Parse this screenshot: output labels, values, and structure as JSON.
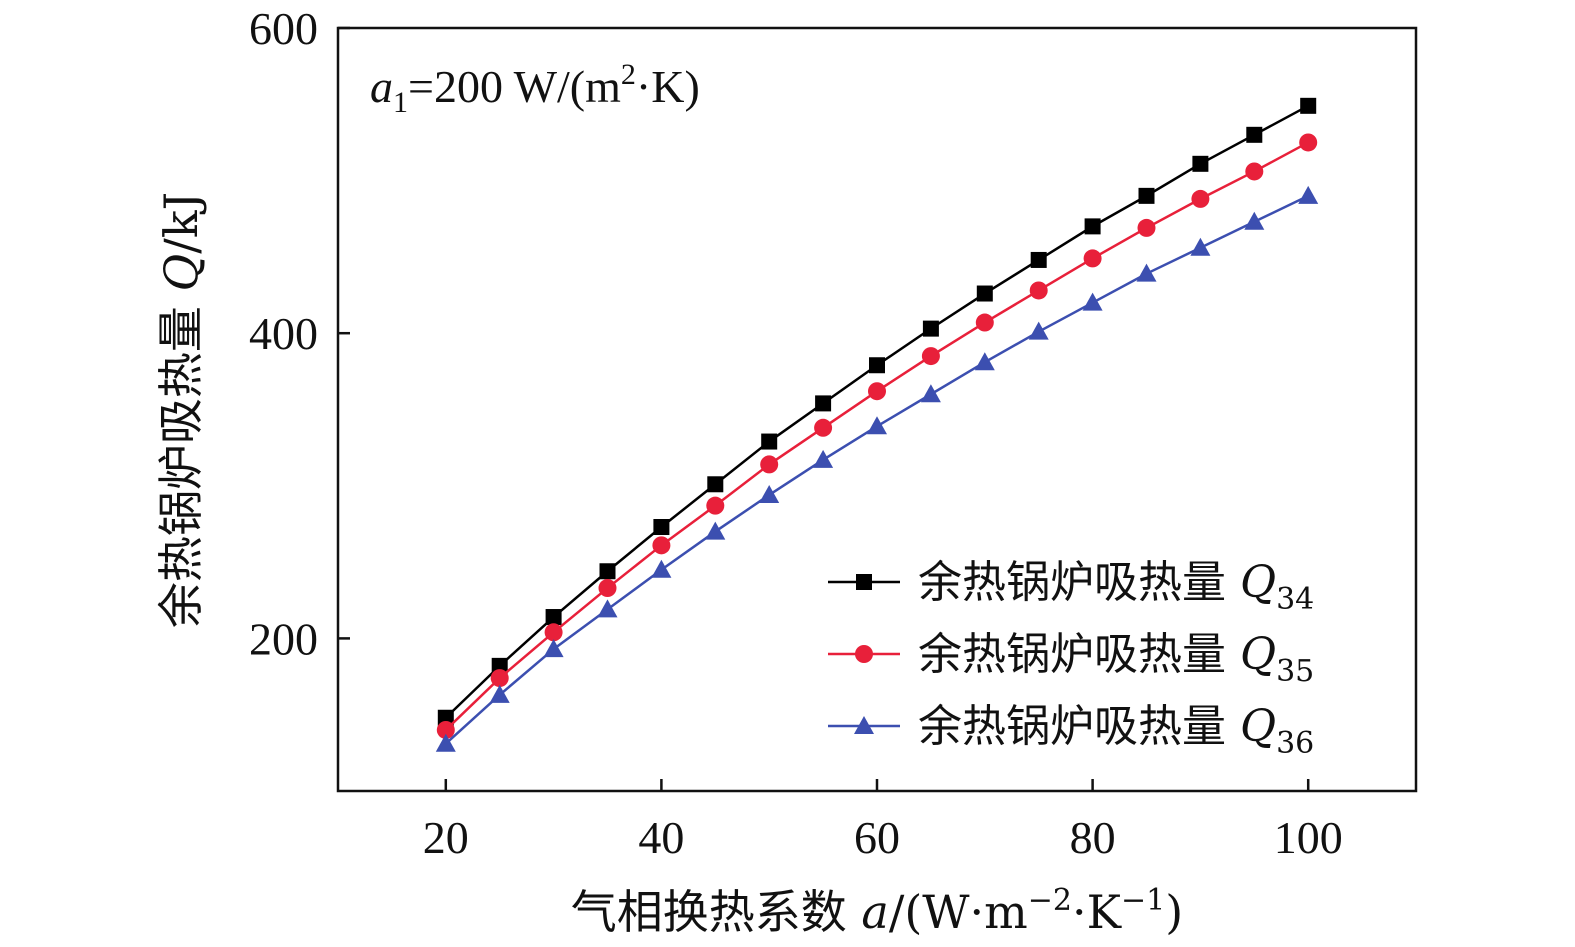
{
  "chart_data": {
    "type": "line",
    "annotation": {
      "symbol": "a",
      "subscript": "1",
      "text": "=200 W/(m",
      "sup": "2",
      "tail": "·K)"
    },
    "xlabel": {
      "text": "气相换热系数 ",
      "var": "a",
      "unit": "/(W·m",
      "sup1": "−2",
      "mid": "·K",
      "sup2": "−1",
      "tail": ")"
    },
    "ylabel": {
      "text": "余热锅炉吸热量 ",
      "var": "Q",
      "unit": "/kJ"
    },
    "xlim": [
      10,
      110
    ],
    "ylim": [
      100,
      600
    ],
    "x_ticks": [
      20,
      40,
      60,
      80,
      100
    ],
    "y_ticks": [
      200,
      400,
      600
    ],
    "grid": false,
    "legend_position": "bottom-right",
    "x": [
      20,
      25,
      30,
      35,
      40,
      45,
      50,
      55,
      60,
      65,
      70,
      75,
      80,
      85,
      90,
      95,
      100
    ],
    "series": [
      {
        "name": "余热锅炉吸热量 ",
        "var": "Q",
        "subscript": "34",
        "color": "#000000",
        "marker": "square",
        "values": [
          148,
          182,
          214,
          244,
          273,
          301,
          329,
          354,
          379,
          403,
          426,
          448,
          470,
          490,
          511,
          530,
          549
        ]
      },
      {
        "name": "余热锅炉吸热量 ",
        "var": "Q",
        "subscript": "35",
        "color": "#e8203a",
        "marker": "circle",
        "values": [
          140,
          174,
          204,
          233,
          261,
          287,
          314,
          338,
          362,
          385,
          407,
          428,
          449,
          469,
          488,
          506,
          525
        ]
      },
      {
        "name": "余热锅炉吸热量 ",
        "var": "Q",
        "subscript": "36",
        "color": "#3c4fb0",
        "marker": "triangle",
        "values": [
          131,
          163,
          193,
          219,
          245,
          270,
          294,
          317,
          339,
          360,
          381,
          401,
          420,
          439,
          456,
          473,
          490
        ]
      }
    ]
  }
}
